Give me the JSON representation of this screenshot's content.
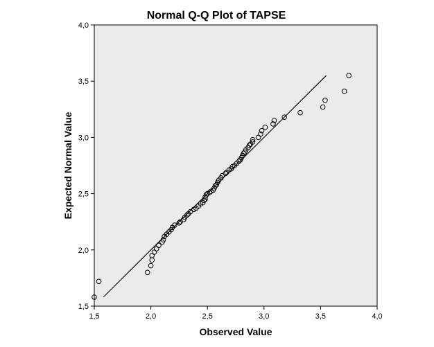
{
  "chart_data": {
    "type": "scatter",
    "title": "Normal Q-Q Plot of TAPSE",
    "xlabel": "Observed Value",
    "ylabel": "Expected Normal Value",
    "xlim": [
      1.5,
      4.0
    ],
    "ylim": [
      1.5,
      4.0
    ],
    "x_ticks": [
      "1,5",
      "2,0",
      "2,5",
      "3,0",
      "3,5",
      "4,0"
    ],
    "y_ticks": [
      "1,5",
      "2,0",
      "2,5",
      "3,0",
      "3,5",
      "4,0"
    ],
    "grid": false,
    "legend": "none",
    "plot_background": "#ebebeb",
    "marker": "open-circle",
    "reference_line": {
      "x": [
        1.58,
        3.55
      ],
      "y": [
        1.58,
        3.55
      ]
    },
    "points": [
      {
        "x": 1.5,
        "y": 1.58
      },
      {
        "x": 1.54,
        "y": 1.72
      },
      {
        "x": 1.97,
        "y": 1.8
      },
      {
        "x": 2.0,
        "y": 1.86
      },
      {
        "x": 2.01,
        "y": 1.91
      },
      {
        "x": 2.01,
        "y": 1.95
      },
      {
        "x": 2.03,
        "y": 1.98
      },
      {
        "x": 2.05,
        "y": 2.01
      },
      {
        "x": 2.07,
        "y": 2.04
      },
      {
        "x": 2.1,
        "y": 2.07
      },
      {
        "x": 2.11,
        "y": 2.09
      },
      {
        "x": 2.12,
        "y": 2.12
      },
      {
        "x": 2.14,
        "y": 2.14
      },
      {
        "x": 2.16,
        "y": 2.16
      },
      {
        "x": 2.18,
        "y": 2.18
      },
      {
        "x": 2.19,
        "y": 2.2
      },
      {
        "x": 2.21,
        "y": 2.22
      },
      {
        "x": 2.25,
        "y": 2.24
      },
      {
        "x": 2.26,
        "y": 2.25
      },
      {
        "x": 2.29,
        "y": 2.27
      },
      {
        "x": 2.3,
        "y": 2.29
      },
      {
        "x": 2.32,
        "y": 2.31
      },
      {
        "x": 2.33,
        "y": 2.32
      },
      {
        "x": 2.35,
        "y": 2.34
      },
      {
        "x": 2.38,
        "y": 2.36
      },
      {
        "x": 2.4,
        "y": 2.37
      },
      {
        "x": 2.42,
        "y": 2.39
      },
      {
        "x": 2.44,
        "y": 2.41
      },
      {
        "x": 2.46,
        "y": 2.42
      },
      {
        "x": 2.47,
        "y": 2.44
      },
      {
        "x": 2.48,
        "y": 2.45
      },
      {
        "x": 2.48,
        "y": 2.47
      },
      {
        "x": 2.49,
        "y": 2.49
      },
      {
        "x": 2.5,
        "y": 2.5
      },
      {
        "x": 2.52,
        "y": 2.51
      },
      {
        "x": 2.53,
        "y": 2.52
      },
      {
        "x": 2.55,
        "y": 2.53
      },
      {
        "x": 2.56,
        "y": 2.55
      },
      {
        "x": 2.57,
        "y": 2.57
      },
      {
        "x": 2.58,
        "y": 2.58
      },
      {
        "x": 2.59,
        "y": 2.6
      },
      {
        "x": 2.6,
        "y": 2.62
      },
      {
        "x": 2.62,
        "y": 2.64
      },
      {
        "x": 2.63,
        "y": 2.66
      },
      {
        "x": 2.66,
        "y": 2.68
      },
      {
        "x": 2.67,
        "y": 2.69
      },
      {
        "x": 2.69,
        "y": 2.71
      },
      {
        "x": 2.71,
        "y": 2.72
      },
      {
        "x": 2.72,
        "y": 2.74
      },
      {
        "x": 2.74,
        "y": 2.75
      },
      {
        "x": 2.76,
        "y": 2.77
      },
      {
        "x": 2.78,
        "y": 2.79
      },
      {
        "x": 2.79,
        "y": 2.8
      },
      {
        "x": 2.8,
        "y": 2.82
      },
      {
        "x": 2.81,
        "y": 2.84
      },
      {
        "x": 2.82,
        "y": 2.86
      },
      {
        "x": 2.83,
        "y": 2.87
      },
      {
        "x": 2.84,
        "y": 2.89
      },
      {
        "x": 2.86,
        "y": 2.91
      },
      {
        "x": 2.87,
        "y": 2.93
      },
      {
        "x": 2.88,
        "y": 2.94
      },
      {
        "x": 2.9,
        "y": 2.96
      },
      {
        "x": 2.9,
        "y": 2.98
      },
      {
        "x": 2.95,
        "y": 3.0
      },
      {
        "x": 2.97,
        "y": 3.03
      },
      {
        "x": 2.98,
        "y": 3.06
      },
      {
        "x": 3.01,
        "y": 3.09
      },
      {
        "x": 3.08,
        "y": 3.12
      },
      {
        "x": 3.09,
        "y": 3.15
      },
      {
        "x": 3.18,
        "y": 3.18
      },
      {
        "x": 3.32,
        "y": 3.22
      },
      {
        "x": 3.52,
        "y": 3.27
      },
      {
        "x": 3.54,
        "y": 3.33
      },
      {
        "x": 3.71,
        "y": 3.41
      },
      {
        "x": 3.75,
        "y": 3.55
      }
    ]
  }
}
